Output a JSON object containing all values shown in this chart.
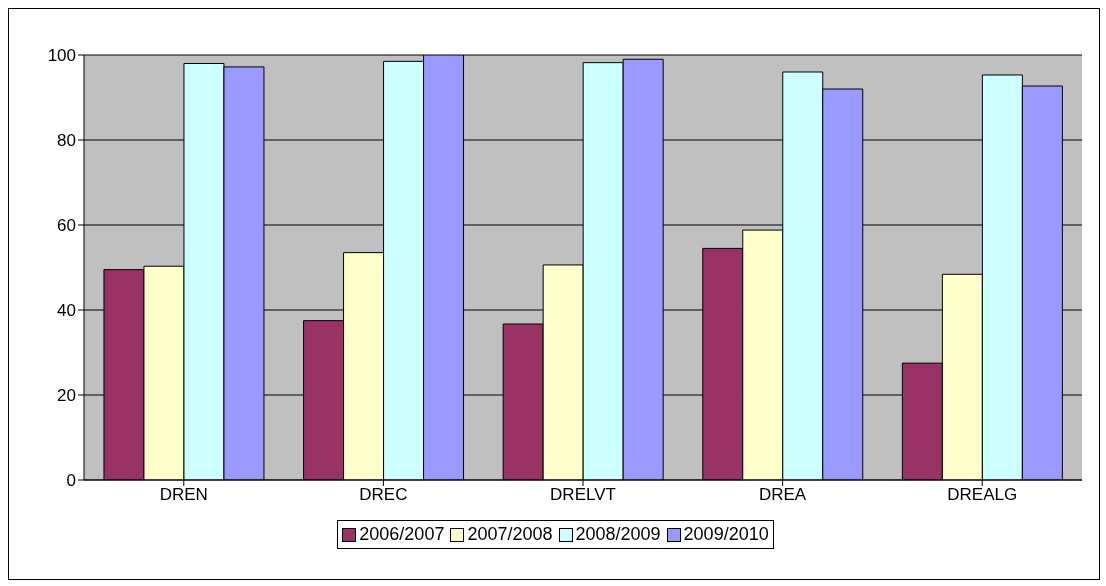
{
  "chart_data": {
    "type": "bar",
    "categories": [
      "DREN",
      "DREC",
      "DRELVT",
      "DREA",
      "DREALG"
    ],
    "series": [
      {
        "name": "2006/2007",
        "color": "#993366",
        "values": [
          49.5,
          37.5,
          36.7,
          54.5,
          27.5
        ]
      },
      {
        "name": "2007/2008",
        "color": "#ffffcc",
        "values": [
          50.3,
          53.5,
          50.6,
          58.8,
          48.4
        ]
      },
      {
        "name": "2008/2009",
        "color": "#ccffff",
        "values": [
          98,
          98.5,
          98.2,
          96,
          95.3
        ]
      },
      {
        "name": "2009/2010",
        "color": "#9999ff",
        "values": [
          97.2,
          100,
          99,
          92,
          92.7
        ]
      }
    ],
    "ylim": [
      0,
      100
    ],
    "yticks": [
      0,
      20,
      40,
      60,
      80,
      100
    ],
    "grid": "y",
    "legend": "bottom"
  }
}
